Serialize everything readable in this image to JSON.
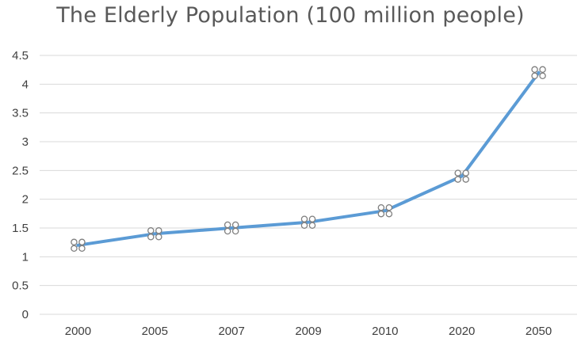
{
  "chart_data": {
    "type": "line",
    "title": "The Elderly Population (100 million people)",
    "categories": [
      "2000",
      "2005",
      "2007",
      "2009",
      "2010",
      "2020",
      "2050"
    ],
    "series": [
      {
        "values": [
          1.2,
          1.4,
          1.5,
          1.6,
          1.8,
          2.4,
          4.2
        ]
      }
    ],
    "ylim": [
      0,
      4.5
    ],
    "yticks": [
      "0",
      "0.5",
      "1",
      "1.5",
      "2",
      "2.5",
      "3",
      "3.5",
      "4",
      "4.5"
    ],
    "grid": true,
    "legend": "none",
    "colors": {
      "line": "#5B9BD5",
      "grid": "#D9D9D9",
      "marker_edge": "#7F7F7F"
    },
    "marker_icon": "quatrefoil-marker"
  }
}
